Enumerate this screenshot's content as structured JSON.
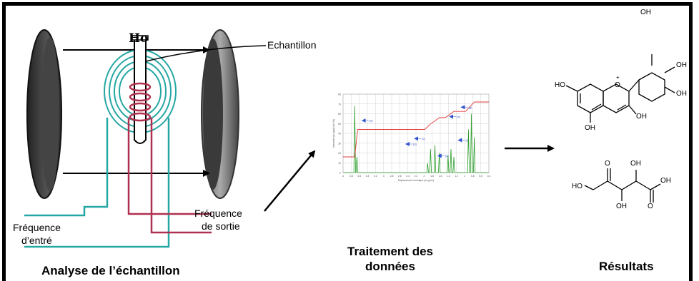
{
  "diagram": {
    "field_label": "Ho",
    "sample_label": "Echantillon",
    "input_freq": [
      "Fréquence",
      "d’entré"
    ],
    "output_freq": [
      "Fréquence",
      "de sortie"
    ],
    "caption_analysis": "Analyse de l’échantillon",
    "caption_processing": [
      "Traitement des",
      "données"
    ],
    "caption_results": "Résultats"
  },
  "molecule1": {
    "labels": [
      "OH",
      "OH",
      "HO",
      "O",
      "+",
      "OH",
      "OH",
      "OH"
    ]
  },
  "molecule2": {
    "labels": [
      "O",
      "OH",
      "HO",
      "OH",
      "O",
      "OH"
    ]
  },
  "spectrum": {
    "y_ticks": [
      "80",
      "70",
      "60",
      "50",
      "40",
      "30",
      "20",
      "10",
      "0"
    ],
    "x_ticks": [
      "4",
      "3,8",
      "3,6",
      "3,4",
      "3,2",
      "3",
      "2,8",
      "2,6",
      "2,4",
      "2,2",
      "2",
      "1,8",
      "1,6",
      "1,4",
      "1,2",
      "1",
      "0,8",
      "0,6",
      "0,4"
    ],
    "x_label": "Déplacement chimique (en ppm)",
    "y_label": "Intensité du signal (en %)",
    "peak_labels": [
      "(a)",
      "(b)",
      "(c)",
      "(d)",
      "(e)",
      "(f)",
      "(g)"
    ],
    "colors": {
      "spectrum": "#2a9d2a",
      "integration": "#e23b3b",
      "arrow": "#3355cc",
      "grid": "#c8c8c8"
    }
  },
  "colors": {
    "coil": "#b0314f",
    "ring": "#25a7a3",
    "magnet": "#333333"
  }
}
